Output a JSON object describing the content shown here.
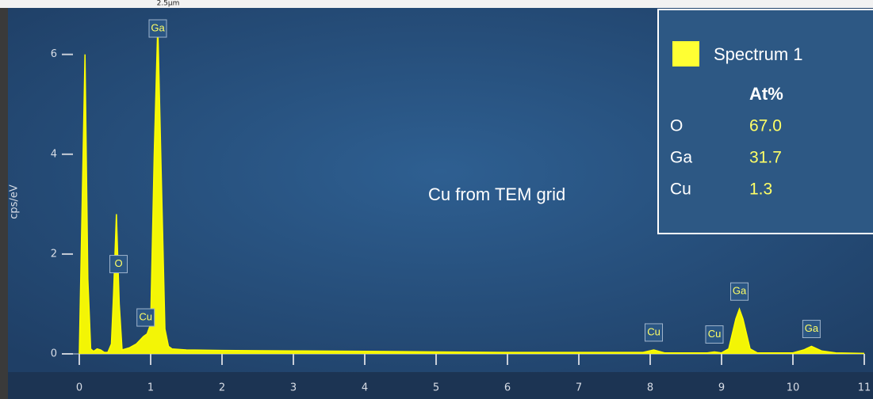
{
  "chart_data": {
    "type": "area",
    "y_label": "cps/eV",
    "x": [
      0,
      0.04,
      0.08,
      0.12,
      0.16,
      0.2,
      0.25,
      0.3,
      0.35,
      0.4,
      0.45,
      0.48,
      0.52,
      0.56,
      0.6,
      0.7,
      0.8,
      0.9,
      0.95,
      1.0,
      1.05,
      1.1,
      1.15,
      1.2,
      1.25,
      1.3,
      1.5,
      2,
      3,
      4,
      5,
      6,
      7,
      7.9,
      8.05,
      8.2,
      8.8,
      8.9,
      9.0,
      9.1,
      9.2,
      9.25,
      9.3,
      9.4,
      9.5,
      10,
      10.15,
      10.26,
      10.4,
      10.6,
      11
    ],
    "values": [
      0,
      3,
      6.0,
      1.5,
      0.1,
      0.05,
      0.1,
      0.08,
      0.03,
      0.03,
      0.2,
      1.2,
      2.8,
      1.0,
      0.08,
      0.12,
      0.2,
      0.35,
      0.4,
      0.6,
      4.0,
      6.6,
      3.5,
      0.5,
      0.15,
      0.1,
      0.08,
      0.07,
      0.06,
      0.05,
      0.04,
      0.03,
      0.03,
      0.03,
      0.08,
      0.02,
      0.02,
      0.04,
      0.02,
      0.1,
      0.7,
      0.9,
      0.7,
      0.1,
      0.02,
      0.02,
      0.08,
      0.15,
      0.06,
      0.02,
      0.01
    ],
    "color": "#ffff00",
    "xlim": [
      -0.1,
      11
    ],
    "ylim": [
      0,
      6.9
    ],
    "xticks": [
      0,
      1,
      2,
      3,
      4,
      5,
      6,
      7,
      8,
      9,
      10,
      11
    ],
    "yticks": [
      0,
      2,
      4,
      6
    ],
    "annotations": [
      {
        "text": "Ga",
        "x": 1.1
      },
      {
        "text": "O",
        "x": 0.55
      },
      {
        "text": "Cu",
        "x": 0.93
      },
      {
        "text": "Cu",
        "x": 8.05
      },
      {
        "text": "Cu",
        "x": 8.9
      },
      {
        "text": "Ga",
        "x": 9.25
      },
      {
        "text": "Ga",
        "x": 10.26
      }
    ],
    "note": "Cu from TEM grid",
    "scale_bar": "2.5µm",
    "legend": {
      "title": "Spectrum 1",
      "header": "At%",
      "rows": [
        [
          "O",
          "67.0"
        ],
        [
          "Ga",
          "31.7"
        ],
        [
          "Cu",
          "1.3"
        ]
      ]
    }
  }
}
